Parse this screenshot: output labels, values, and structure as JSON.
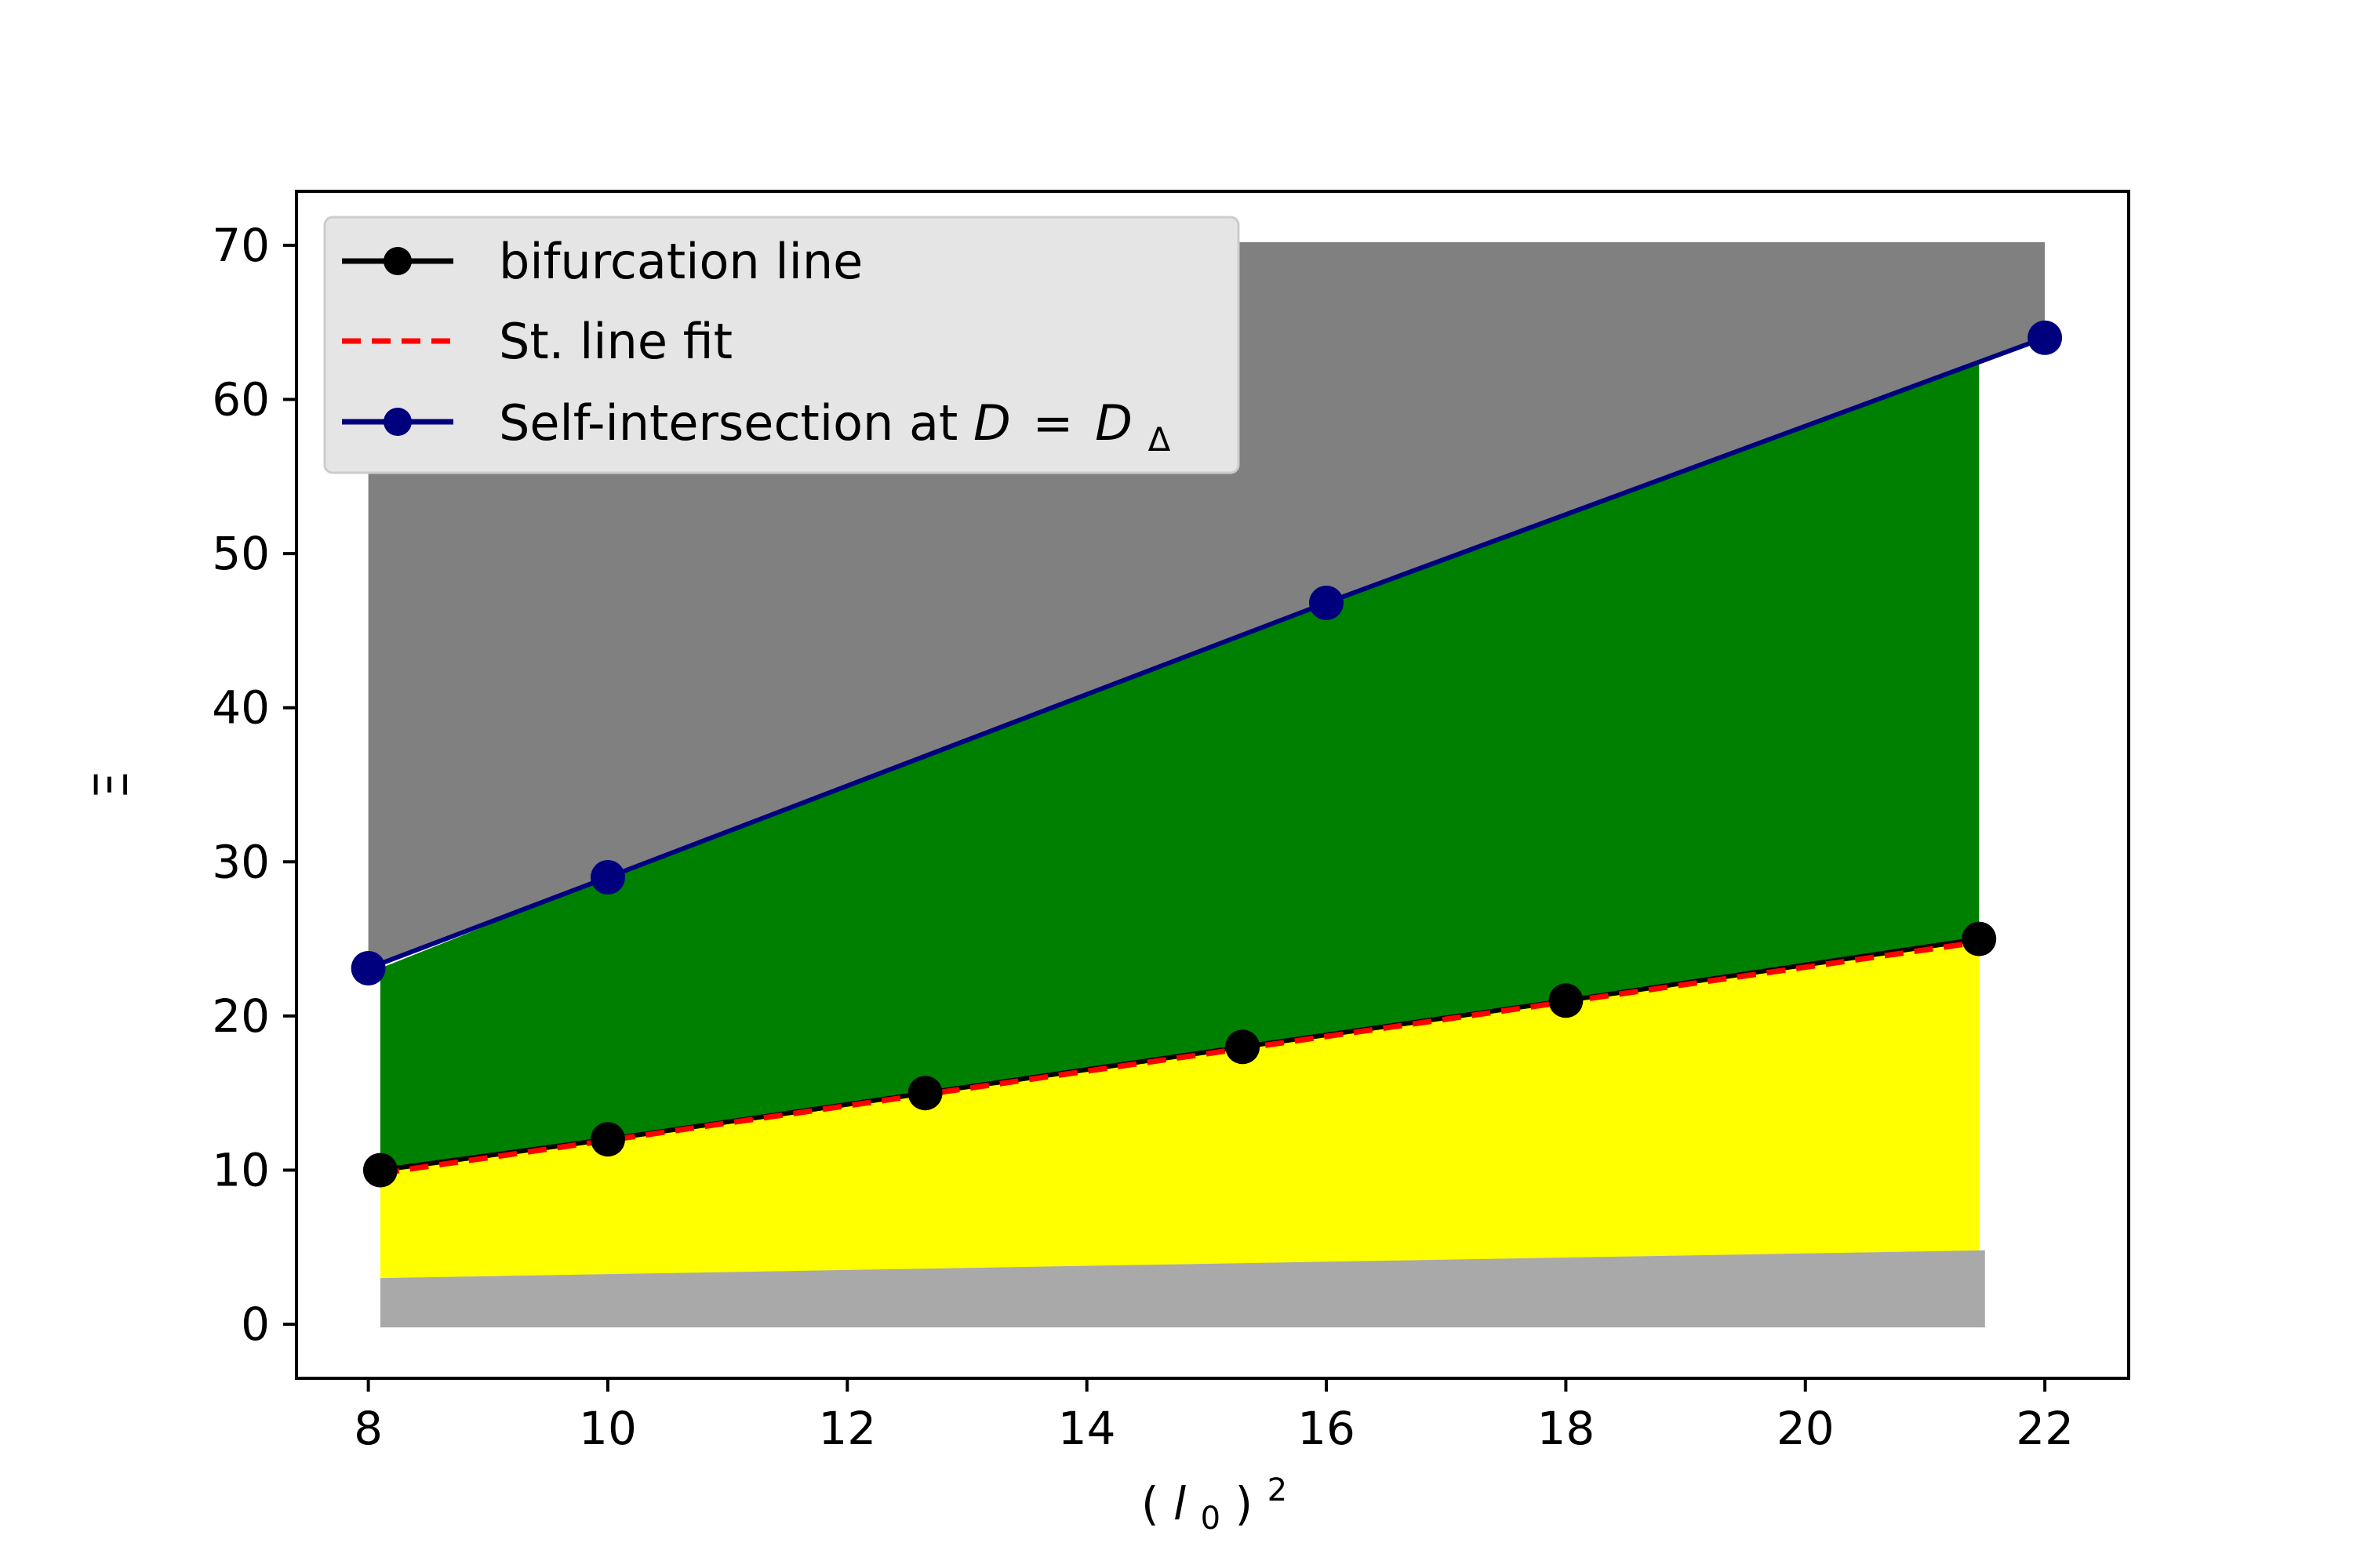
{
  "chart_data": {
    "type": "line",
    "xlabel": "(l0)^2",
    "ylabel": "Ξ",
    "xlim": [
      7.4,
      22.7
    ],
    "ylim": [
      -3.5,
      73.5
    ],
    "xticks": [
      8,
      10,
      12,
      14,
      16,
      18,
      20,
      22
    ],
    "yticks": [
      0,
      10,
      20,
      30,
      40,
      50,
      60,
      70
    ],
    "grid": false,
    "legend_position": "top-left",
    "series": [
      {
        "name": "bifurcation line",
        "color": "#000000",
        "marker": "circle",
        "line_style": "solid",
        "x": [
          8.1,
          10.0,
          12.65,
          15.3,
          18.0,
          21.45
        ],
        "y": [
          10,
          12,
          15,
          18,
          21,
          25
        ]
      },
      {
        "name": "St. line fit",
        "color": "#ff0000",
        "marker": "none",
        "line_style": "dashed",
        "x": [
          8.1,
          21.45
        ],
        "y": [
          9.8,
          24.8
        ]
      },
      {
        "name": "Self-intersection at D = DΔ",
        "color": "#00007f",
        "marker": "circle",
        "line_style": "solid",
        "x": [
          8.0,
          10.0,
          16.0,
          22.0
        ],
        "y": [
          23.1,
          29.0,
          46.8,
          64.0
        ]
      }
    ],
    "regions": [
      {
        "color": "#808080",
        "x": [
          8.0,
          21.45,
          22.0,
          22.0,
          8.0
        ],
        "y": [
          23.1,
          62.5,
          64.0,
          70.2,
          70.2
        ]
      },
      {
        "color": "#008000",
        "x": [
          8.1,
          8.1,
          10.0,
          16.0,
          21.45,
          21.45,
          18.0,
          15.3,
          12.65,
          10.0
        ],
        "y": [
          10.0,
          23.1,
          29.0,
          46.8,
          62.5,
          25.0,
          21.0,
          18.0,
          15.0,
          12.0
        ]
      },
      {
        "color": "#ffff00",
        "x": [
          8.1,
          10.0,
          12.65,
          15.3,
          18.0,
          21.45,
          21.45,
          8.1
        ],
        "y": [
          10.0,
          12.0,
          15.0,
          18.0,
          21.0,
          25.0,
          4.6,
          3.0
        ]
      },
      {
        "color": "#a9a9a9",
        "x": [
          8.1,
          21.5,
          21.5,
          8.1
        ],
        "y": [
          3.0,
          4.8,
          -0.2,
          -0.2
        ]
      }
    ],
    "colors": {
      "upper_region": "#808080",
      "middle_region": "#008000",
      "lower_region": "#ffff00",
      "base_region": "#a9a9a9",
      "legend_background": "#e5e5e5"
    }
  }
}
